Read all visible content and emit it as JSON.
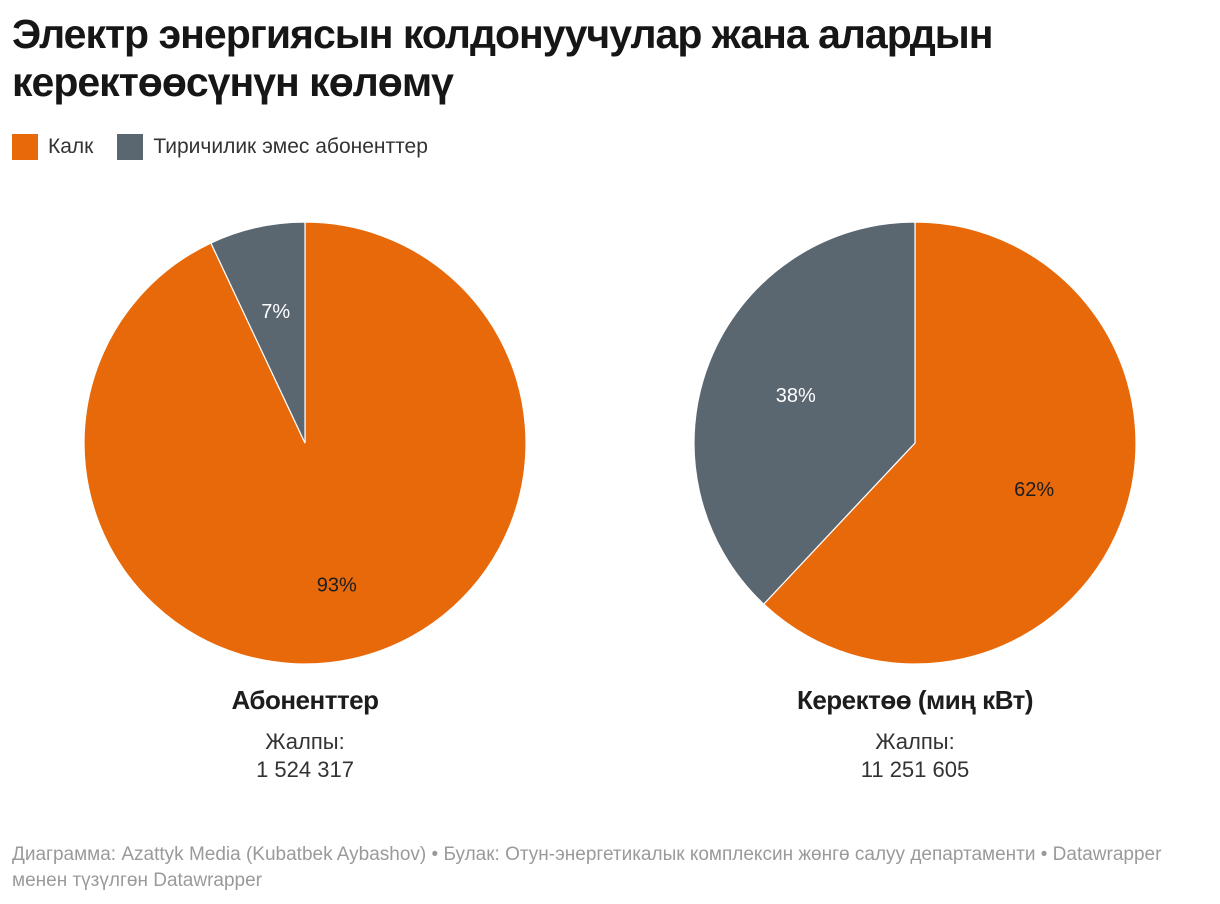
{
  "title": "Электр энергиясын колдонуучулар жана алардын керектөөсүнүн көлөмү",
  "legend": [
    {
      "label": "Калк",
      "color": "#e8690a"
    },
    {
      "label": "Тиричилик эмес абоненттер",
      "color": "#5a6670"
    }
  ],
  "chart_data": [
    {
      "type": "pie",
      "title": "Абоненттер",
      "total_label": "Жалпы:",
      "total_value": "1 524 317",
      "slices": [
        {
          "name": "Калк",
          "value": 93,
          "label": "93%",
          "color": "#e8690a",
          "label_color": "#1d1d1d"
        },
        {
          "name": "Тиричилик эмес абоненттер",
          "value": 7,
          "label": "7%",
          "color": "#5a6670",
          "label_color": "#ffffff"
        }
      ]
    },
    {
      "type": "pie",
      "title": "Керектөө (миң кВт)",
      "total_label": "Жалпы:",
      "total_value": "11 251 605",
      "slices": [
        {
          "name": "Калк",
          "value": 62,
          "label": "62%",
          "color": "#e8690a",
          "label_color": "#1d1d1d"
        },
        {
          "name": "Тиричилик эмес абоненттер",
          "value": 38,
          "label": "38%",
          "color": "#5a6670",
          "label_color": "#ffffff"
        }
      ]
    }
  ],
  "footer": {
    "credit": "Диаграмма: Azattyk Media (Kubatbek Aybashov) • Булак: Отун-энергетикалык комплексин жөнгө салуу департаменти • Datawrapper менен түзүлгөн Datawrapper"
  }
}
